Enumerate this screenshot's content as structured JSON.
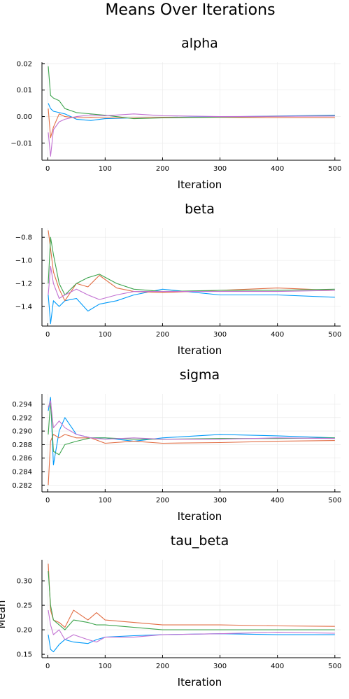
{
  "figure": {
    "title": "Means Over Iterations",
    "colors": [
      "#009af9",
      "#e26f46",
      "#3da44d",
      "#c271d2"
    ]
  },
  "chart_data": [
    {
      "type": "line",
      "title": "alpha",
      "xlabel": "Iteration",
      "ylabel": "",
      "xlim": [
        -10,
        510
      ],
      "ylim": [
        -0.0165,
        0.0205
      ],
      "xticks": [
        0,
        100,
        200,
        300,
        400,
        500
      ],
      "yticks": [
        -0.01,
        0.0,
        0.01,
        0.02
      ],
      "ytick_labels": [
        "−0.01",
        "0.00",
        "0.01",
        "0.02"
      ],
      "grid": true,
      "x": [
        1,
        5,
        10,
        20,
        30,
        50,
        75,
        100,
        150,
        200,
        300,
        400,
        500
      ],
      "series": [
        {
          "values": [
            0.005,
            0.003,
            0.002,
            0.0015,
            0.001,
            -0.001,
            -0.0015,
            -0.0008,
            -0.0005,
            -0.0003,
            -0.0001,
            0.0002,
            0.0005
          ]
        },
        {
          "values": [
            0.003,
            -0.008,
            -0.004,
            0.001,
            0.0,
            -0.0005,
            -0.0003,
            -0.0005,
            -0.0005,
            -0.0003,
            -0.0003,
            -0.0004,
            -0.0004
          ]
        },
        {
          "values": [
            0.019,
            0.008,
            0.007,
            0.006,
            0.003,
            0.0015,
            0.001,
            0.0005,
            -0.0008,
            -0.0005,
            -0.0002,
            0.0001,
            0.0003
          ]
        },
        {
          "values": [
            -0.006,
            -0.015,
            -0.005,
            -0.002,
            -0.001,
            0.0,
            0.0006,
            0.0003,
            0.001,
            0.0003,
            0.0,
            0.0001,
            0.0002
          ]
        }
      ]
    },
    {
      "type": "line",
      "title": "beta",
      "xlabel": "Iteration",
      "ylabel": "",
      "xlim": [
        -10,
        510
      ],
      "ylim": [
        -1.57,
        -0.72
      ],
      "xticks": [
        0,
        100,
        200,
        300,
        400,
        500
      ],
      "yticks": [
        -1.4,
        -1.2,
        -1.0,
        -0.8
      ],
      "ytick_labels": [
        "−1.4",
        "−1.2",
        "−1.0",
        "−0.8"
      ],
      "grid": true,
      "x": [
        1,
        5,
        10,
        20,
        30,
        50,
        70,
        90,
        120,
        150,
        200,
        300,
        400,
        500
      ],
      "series": [
        {
          "values": [
            -1.3,
            -1.55,
            -1.35,
            -1.4,
            -1.35,
            -1.33,
            -1.44,
            -1.38,
            -1.35,
            -1.3,
            -1.25,
            -1.3,
            -1.3,
            -1.32
          ]
        },
        {
          "values": [
            -0.74,
            -0.9,
            -1.1,
            -1.25,
            -1.35,
            -1.2,
            -1.23,
            -1.13,
            -1.24,
            -1.27,
            -1.28,
            -1.26,
            -1.24,
            -1.26
          ]
        },
        {
          "values": [
            -1.2,
            -0.8,
            -0.95,
            -1.2,
            -1.3,
            -1.2,
            -1.15,
            -1.12,
            -1.2,
            -1.25,
            -1.27,
            -1.26,
            -1.26,
            -1.25
          ]
        },
        {
          "values": [
            -1.3,
            -1.05,
            -1.2,
            -1.33,
            -1.3,
            -1.25,
            -1.3,
            -1.34,
            -1.3,
            -1.27,
            -1.27,
            -1.27,
            -1.27,
            -1.26
          ]
        }
      ]
    },
    {
      "type": "line",
      "title": "sigma",
      "xlabel": "Iteration",
      "ylabel": "",
      "xlim": [
        -10,
        510
      ],
      "ylim": [
        0.281,
        0.2955
      ],
      "xticks": [
        0,
        100,
        200,
        300,
        400,
        500
      ],
      "yticks": [
        0.282,
        0.284,
        0.286,
        0.288,
        0.29,
        0.292,
        0.294
      ],
      "ytick_labels": [
        "0.282",
        "0.284",
        "0.286",
        "0.288",
        "0.290",
        "0.292",
        "0.294"
      ],
      "grid": true,
      "x": [
        1,
        5,
        10,
        20,
        30,
        50,
        75,
        100,
        150,
        200,
        300,
        400,
        500
      ],
      "series": [
        {
          "values": [
            0.293,
            0.295,
            0.285,
            0.29,
            0.292,
            0.2895,
            0.289,
            0.289,
            0.2885,
            0.289,
            0.2895,
            0.2893,
            0.289
          ]
        },
        {
          "values": [
            0.282,
            0.2885,
            0.2895,
            0.289,
            0.2895,
            0.289,
            0.289,
            0.2882,
            0.2885,
            0.2882,
            0.2883,
            0.2885,
            0.2886
          ]
        },
        {
          "values": [
            0.2895,
            0.2945,
            0.287,
            0.2865,
            0.288,
            0.2885,
            0.289,
            0.289,
            0.2888,
            0.2888,
            0.2889,
            0.2889,
            0.289
          ]
        },
        {
          "values": [
            0.2935,
            0.2945,
            0.2905,
            0.2915,
            0.2905,
            0.2895,
            0.289,
            0.2888,
            0.289,
            0.2888,
            0.2888,
            0.289,
            0.2889
          ]
        }
      ]
    },
    {
      "type": "line",
      "title": "tau_beta",
      "xlabel": "Iteration",
      "ylabel": "Mean",
      "xlim": [
        -10,
        510
      ],
      "ylim": [
        0.143,
        0.343
      ],
      "xticks": [
        0,
        100,
        200,
        300,
        400,
        500
      ],
      "yticks": [
        0.15,
        0.2,
        0.25,
        0.3
      ],
      "ytick_labels": [
        "0.15",
        "0.20",
        "0.25",
        "0.30"
      ],
      "grid": true,
      "x": [
        1,
        5,
        10,
        20,
        30,
        45,
        70,
        85,
        100,
        150,
        200,
        300,
        400,
        500
      ],
      "series": [
        {
          "values": [
            0.19,
            0.16,
            0.155,
            0.17,
            0.18,
            0.175,
            0.172,
            0.18,
            0.185,
            0.188,
            0.19,
            0.192,
            0.19,
            0.19
          ]
        },
        {
          "values": [
            0.335,
            0.24,
            0.22,
            0.215,
            0.205,
            0.24,
            0.22,
            0.235,
            0.22,
            0.215,
            0.21,
            0.21,
            0.208,
            0.207
          ]
        },
        {
          "values": [
            0.32,
            0.25,
            0.22,
            0.21,
            0.2,
            0.22,
            0.215,
            0.21,
            0.21,
            0.205,
            0.2,
            0.2,
            0.2,
            0.2
          ]
        },
        {
          "values": [
            0.24,
            0.21,
            0.19,
            0.2,
            0.18,
            0.19,
            0.18,
            0.175,
            0.185,
            0.185,
            0.19,
            0.192,
            0.195,
            0.193
          ]
        }
      ]
    }
  ]
}
